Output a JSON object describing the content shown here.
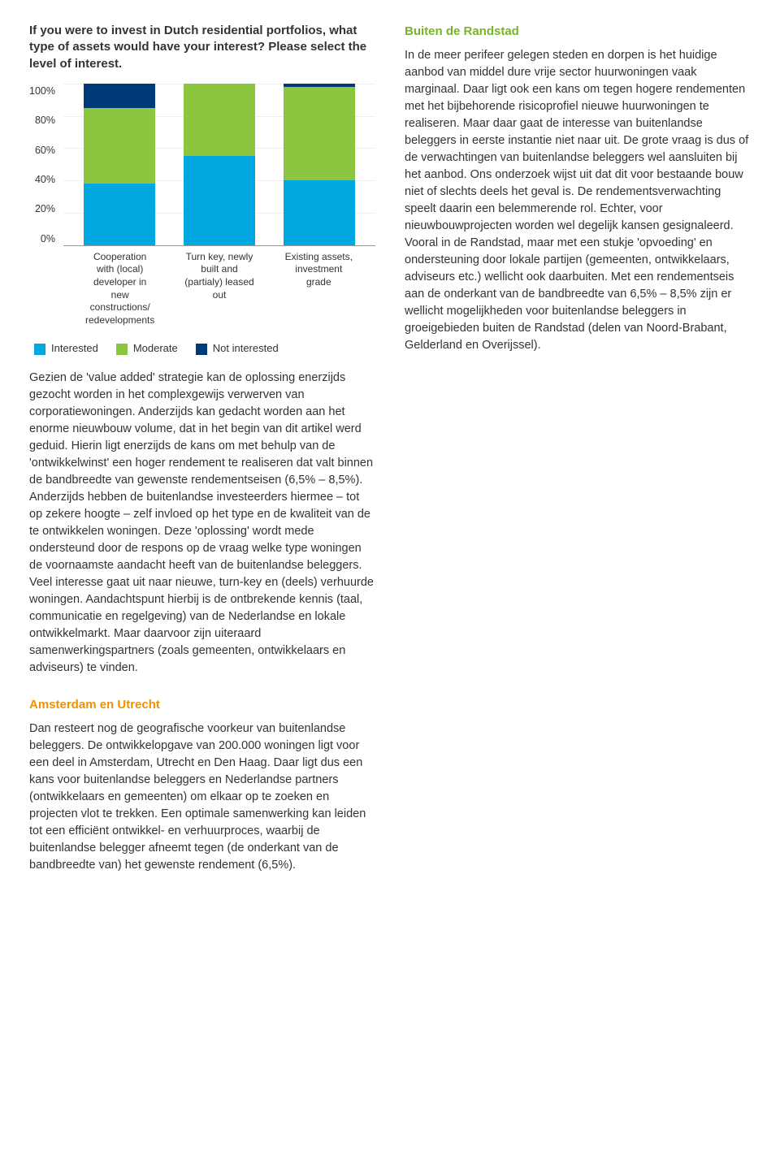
{
  "chart": {
    "question": "If you were to invest in Dutch residential portfolios, what type of assets would have your interest? Please select the level of interest.",
    "type": "stacked-bar",
    "yticks": [
      "100%",
      "80%",
      "60%",
      "40%",
      "20%",
      "0%"
    ],
    "categories": [
      "Cooperation with (local) developer in new constructions/ redevelopments",
      "Turn key, newly built and (partialy) leased out",
      "Existing assets, investment grade"
    ],
    "series": [
      {
        "name": "Interested",
        "color": "#00a7e1"
      },
      {
        "name": "Moderate",
        "color": "#8cc63f"
      },
      {
        "name": "Not interested",
        "color": "#003a78"
      }
    ],
    "data": [
      {
        "interested": 38,
        "moderate": 47,
        "not_interested": 15
      },
      {
        "interested": 55,
        "moderate": 45,
        "not_interested": 0
      },
      {
        "interested": 40,
        "moderate": 58,
        "not_interested": 2
      }
    ],
    "background_color": "#ffffff",
    "grid_color": "#eeeeee",
    "bar_width_pct": 24
  },
  "text": {
    "left_para": "Gezien de 'value added' strategie kan de oplossing enerzijds gezocht worden in het complexgewijs verwerven van corporatiewoningen. Anderzijds kan gedacht worden aan het enorme nieuwbouw volume, dat in het begin van dit artikel werd geduid. Hierin ligt enerzijds de kans om met behulp van de 'ontwikkelwinst' een hoger rendement te realiseren dat valt binnen de bandbreedte van gewenste rendementseisen (6,5% – 8,5%). Anderzijds hebben de buitenlandse investeerders hiermee – tot op zekere hoogte – zelf invloed op het type en de kwaliteit van de te ontwikkelen woningen. Deze 'oplossing' wordt mede ondersteund door de respons op de vraag welke type woningen de voornaamste aandacht heeft van de buitenlandse beleggers. Veel interesse gaat uit naar nieuwe, turn-key en (deels) verhuurde woningen. Aandachtspunt hierbij is de ontbrekende kennis (taal, communicatie en regelgeving) van de Nederlandse en lokale ontwikkelmarkt. Maar daarvoor zijn uiteraard samenwerkingspartners (zoals gemeenten, ontwikkelaars en adviseurs) te vinden.",
    "heading_orange": "Amsterdam en Utrecht",
    "left_para2": "Dan resteert nog de geografische voorkeur van buitenlandse beleggers. De ontwikkelopgave van 200.000 woningen ligt voor een deel in Amsterdam, Utrecht en Den Haag. Daar ligt dus een kans voor buitenlandse beleggers en Nederlandse partners (ontwikkelaars en gemeenten) om elkaar op te zoeken en projecten vlot te trekken. Een optimale samenwerking kan leiden tot een efficiënt ontwikkel- en verhuurproces, waarbij de buitenlandse belegger afneemt tegen (de onderkant van de bandbreedte van) het gewenste rendement (6,5%).",
    "heading_green": "Buiten de Randstad",
    "right_para": "In de meer perifeer gelegen steden en dorpen is het huidige aanbod van middel dure vrije sector huurwoningen vaak marginaal. Daar ligt ook een kans om tegen hogere rendementen met het bijbehorende risicoprofiel nieuwe huurwoningen te realiseren. Maar daar gaat de interesse van buitenlandse beleggers in eerste instantie niet naar uit. De grote vraag is dus of de verwachtingen van buitenlandse beleggers wel aansluiten bij het aanbod. Ons onderzoek wijst uit dat dit voor bestaande bouw niet of slechts deels het geval is. De rendementsverwachting speelt daarin een belemmerende rol. Echter, voor nieuwbouwprojecten worden wel degelijk kansen gesignaleerd. Vooral in de Randstad, maar met een stukje 'opvoeding' en ondersteuning door lokale partijen (gemeenten, ontwikkelaars, adviseurs etc.) wellicht ook daarbuiten. Met een rendementseis aan de onderkant van de bandbreedte van 6,5% – 8,5% zijn er wellicht mogelijkheden voor buitenlandse beleggers in groeigebieden buiten de Randstad (delen van Noord-Brabant, Gelderland en Overijssel)."
  },
  "legend_labels": {
    "interested": "Interested",
    "moderate": "Moderate",
    "not_interested": "Not interested"
  }
}
